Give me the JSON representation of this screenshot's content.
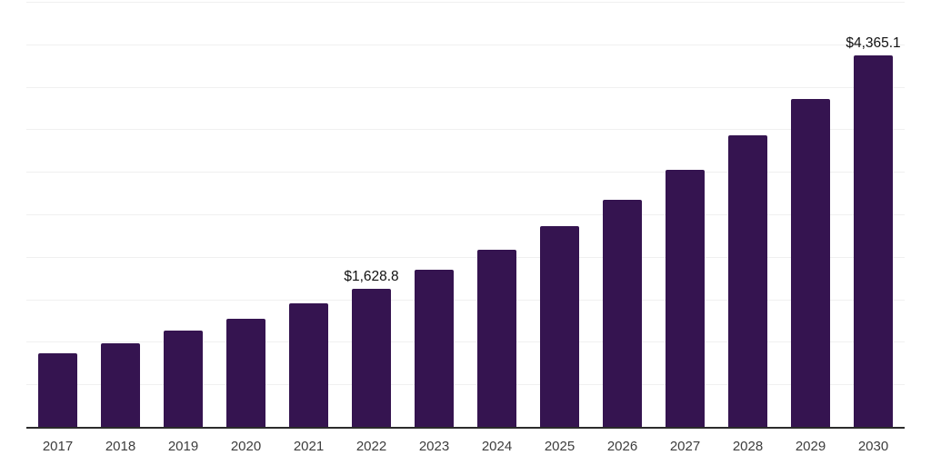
{
  "chart_data": {
    "type": "bar",
    "title": "",
    "categories": [
      "2017",
      "2018",
      "2019",
      "2020",
      "2021",
      "2022",
      "2023",
      "2024",
      "2025",
      "2026",
      "2027",
      "2028",
      "2029",
      "2030"
    ],
    "values": [
      863,
      980,
      1129,
      1271,
      1448,
      1628.8,
      1845,
      2086,
      2366,
      2671,
      3028,
      3426,
      3862,
      4365.1
    ],
    "data_labels": [
      {
        "category": "2022",
        "text": "$1,628.8"
      },
      {
        "category": "2030",
        "text": "$4,365.1"
      }
    ],
    "xlabel": "",
    "ylabel": "",
    "ylim": [
      0,
      5000
    ],
    "gridline_interval": 500,
    "grid": "horizontal",
    "legend": "none",
    "colors": {
      "bar": "#351450",
      "axis_line": "#2b2b2b",
      "gridline": "#f0f0f0",
      "tick_label": "#3d3d3d",
      "data_label": "#111111",
      "background": "#ffffff"
    }
  }
}
